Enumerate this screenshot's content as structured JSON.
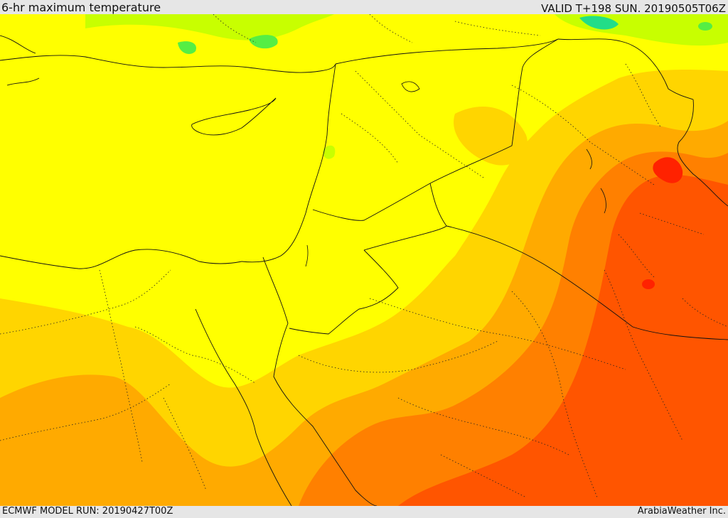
{
  "header": {
    "title": "6-hr maximum temperature",
    "valid": "VALID T+198 SUN. 20190505T06Z"
  },
  "footer": {
    "model_run": "ECMWF MODEL RUN: 20190427T00Z",
    "credit": "ArabiaWeather Inc."
  },
  "colors": {
    "yellow": "#ffff00",
    "light_orange": "#ffd500",
    "orange": "#ffaa00",
    "dark_orange": "#ff8000",
    "red_orange": "#ff5500",
    "red": "#ff2200",
    "green_yellow": "#c8ff00",
    "green": "#55ee44",
    "teal": "#22dd88"
  }
}
